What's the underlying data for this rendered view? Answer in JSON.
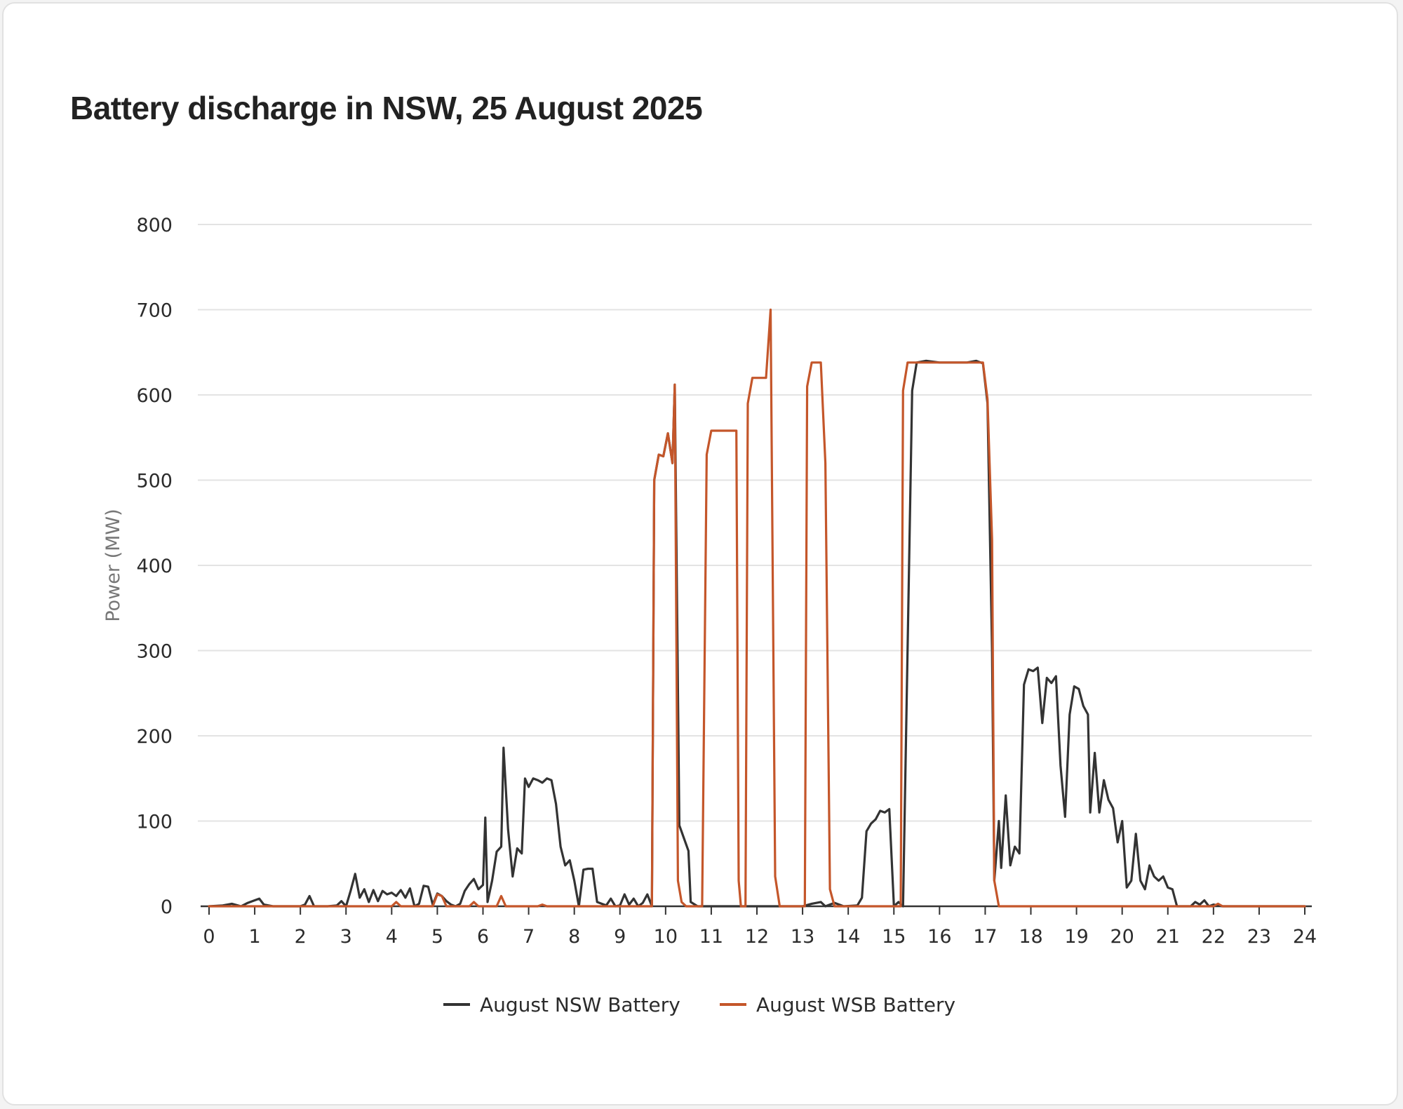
{
  "chart_data": {
    "type": "line",
    "title": "Battery discharge in NSW, 25 August 2025",
    "xlabel": "",
    "ylabel": "Power (MW)",
    "xlim": [
      0,
      24
    ],
    "ylim": [
      0,
      800
    ],
    "x_ticks": [
      "0",
      "1",
      "2",
      "3",
      "4",
      "5",
      "6",
      "7",
      "8",
      "9",
      "10",
      "11",
      "12",
      "13",
      "14",
      "15",
      "16",
      "17",
      "18",
      "19",
      "20",
      "21",
      "22",
      "23",
      "24"
    ],
    "y_ticks": [
      "0",
      "100",
      "200",
      "300",
      "400",
      "500",
      "600",
      "700",
      "800"
    ],
    "grid": true,
    "legend_position": "bottom-center",
    "series": [
      {
        "name": "August NSW Battery",
        "color": "#333333",
        "points": [
          [
            0,
            0
          ],
          [
            0.3,
            1
          ],
          [
            0.5,
            3
          ],
          [
            0.7,
            0
          ],
          [
            0.85,
            4
          ],
          [
            1,
            7
          ],
          [
            1.1,
            9
          ],
          [
            1.2,
            2
          ],
          [
            1.4,
            0
          ],
          [
            2,
            0
          ],
          [
            2.1,
            2
          ],
          [
            2.2,
            12
          ],
          [
            2.3,
            0
          ],
          [
            2.6,
            0
          ],
          [
            2.8,
            1
          ],
          [
            2.9,
            6
          ],
          [
            3,
            0
          ],
          [
            3.1,
            18
          ],
          [
            3.2,
            38
          ],
          [
            3.3,
            10
          ],
          [
            3.4,
            20
          ],
          [
            3.5,
            5
          ],
          [
            3.6,
            19
          ],
          [
            3.7,
            6
          ],
          [
            3.8,
            18
          ],
          [
            3.9,
            14
          ],
          [
            4,
            16
          ],
          [
            4.1,
            12
          ],
          [
            4.2,
            19
          ],
          [
            4.3,
            10
          ],
          [
            4.4,
            21
          ],
          [
            4.5,
            0
          ],
          [
            4.6,
            3
          ],
          [
            4.7,
            24
          ],
          [
            4.8,
            23
          ],
          [
            4.9,
            2
          ],
          [
            5,
            15
          ],
          [
            5.1,
            12
          ],
          [
            5.2,
            6
          ],
          [
            5.3,
            2
          ],
          [
            5.4,
            0
          ],
          [
            5.5,
            3
          ],
          [
            5.6,
            18
          ],
          [
            5.7,
            26
          ],
          [
            5.8,
            32
          ],
          [
            5.9,
            20
          ],
          [
            6,
            25
          ],
          [
            6.05,
            104
          ],
          [
            6.1,
            5
          ],
          [
            6.2,
            30
          ],
          [
            6.3,
            64
          ],
          [
            6.4,
            70
          ],
          [
            6.45,
            186
          ],
          [
            6.55,
            90
          ],
          [
            6.65,
            35
          ],
          [
            6.75,
            68
          ],
          [
            6.85,
            62
          ],
          [
            6.92,
            150
          ],
          [
            7,
            140
          ],
          [
            7.1,
            150
          ],
          [
            7.2,
            148
          ],
          [
            7.3,
            145
          ],
          [
            7.4,
            150
          ],
          [
            7.5,
            148
          ],
          [
            7.6,
            120
          ],
          [
            7.7,
            70
          ],
          [
            7.8,
            48
          ],
          [
            7.9,
            54
          ],
          [
            8,
            30
          ],
          [
            8.1,
            0
          ],
          [
            8.2,
            43
          ],
          [
            8.3,
            44
          ],
          [
            8.4,
            44
          ],
          [
            8.5,
            5
          ],
          [
            8.6,
            3
          ],
          [
            8.7,
            1
          ],
          [
            8.8,
            9
          ],
          [
            8.9,
            0
          ],
          [
            9,
            1
          ],
          [
            9.1,
            14
          ],
          [
            9.2,
            2
          ],
          [
            9.3,
            9
          ],
          [
            9.4,
            0
          ],
          [
            9.5,
            4
          ],
          [
            9.6,
            14
          ],
          [
            9.7,
            0
          ],
          [
            9.75,
            500
          ],
          [
            9.85,
            530
          ],
          [
            9.95,
            528
          ],
          [
            10.05,
            555
          ],
          [
            10.15,
            520
          ],
          [
            10.2,
            612
          ],
          [
            10.3,
            95
          ],
          [
            10.4,
            80
          ],
          [
            10.5,
            65
          ],
          [
            10.55,
            5
          ],
          [
            10.7,
            0
          ],
          [
            13,
            0
          ],
          [
            13.2,
            3
          ],
          [
            13.4,
            5
          ],
          [
            13.5,
            0
          ],
          [
            13.7,
            4
          ],
          [
            13.9,
            0
          ],
          [
            14.2,
            1
          ],
          [
            14.3,
            10
          ],
          [
            14.4,
            88
          ],
          [
            14.5,
            97
          ],
          [
            14.6,
            102
          ],
          [
            14.7,
            112
          ],
          [
            14.8,
            110
          ],
          [
            14.9,
            114
          ],
          [
            15,
            0
          ],
          [
            15.1,
            5
          ],
          [
            15.2,
            0
          ],
          [
            15.4,
            605
          ],
          [
            15.5,
            638
          ],
          [
            15.7,
            640
          ],
          [
            16,
            638
          ],
          [
            16.3,
            638
          ],
          [
            16.6,
            638
          ],
          [
            16.8,
            640
          ],
          [
            16.95,
            637
          ],
          [
            17.05,
            590
          ],
          [
            17.15,
            300
          ],
          [
            17.2,
            30
          ],
          [
            17.3,
            100
          ],
          [
            17.35,
            45
          ],
          [
            17.45,
            130
          ],
          [
            17.55,
            48
          ],
          [
            17.65,
            70
          ],
          [
            17.75,
            62
          ],
          [
            17.85,
            260
          ],
          [
            17.95,
            278
          ],
          [
            18.05,
            276
          ],
          [
            18.15,
            280
          ],
          [
            18.25,
            215
          ],
          [
            18.35,
            268
          ],
          [
            18.45,
            262
          ],
          [
            18.55,
            270
          ],
          [
            18.65,
            165
          ],
          [
            18.75,
            105
          ],
          [
            18.85,
            225
          ],
          [
            18.95,
            258
          ],
          [
            19.05,
            255
          ],
          [
            19.15,
            235
          ],
          [
            19.25,
            225
          ],
          [
            19.3,
            110
          ],
          [
            19.4,
            180
          ],
          [
            19.5,
            110
          ],
          [
            19.6,
            148
          ],
          [
            19.7,
            125
          ],
          [
            19.8,
            115
          ],
          [
            19.9,
            75
          ],
          [
            20,
            100
          ],
          [
            20.1,
            22
          ],
          [
            20.2,
            30
          ],
          [
            20.3,
            85
          ],
          [
            20.4,
            30
          ],
          [
            20.5,
            20
          ],
          [
            20.6,
            48
          ],
          [
            20.7,
            35
          ],
          [
            20.8,
            30
          ],
          [
            20.9,
            35
          ],
          [
            21,
            22
          ],
          [
            21.1,
            20
          ],
          [
            21.2,
            0
          ],
          [
            21.5,
            0
          ],
          [
            21.6,
            5
          ],
          [
            21.7,
            2
          ],
          [
            21.8,
            7
          ],
          [
            21.9,
            0
          ],
          [
            22,
            2
          ],
          [
            22.2,
            0
          ],
          [
            24,
            0
          ]
        ]
      },
      {
        "name": "August WSB Battery",
        "color": "#c4562a",
        "points": [
          [
            0,
            0
          ],
          [
            4,
            0
          ],
          [
            4.1,
            5
          ],
          [
            4.2,
            0
          ],
          [
            4.9,
            0
          ],
          [
            5,
            14
          ],
          [
            5.1,
            12
          ],
          [
            5.2,
            0
          ],
          [
            5.7,
            0
          ],
          [
            5.8,
            5
          ],
          [
            5.9,
            0
          ],
          [
            6.3,
            0
          ],
          [
            6.4,
            12
          ],
          [
            6.5,
            0
          ],
          [
            7.2,
            0
          ],
          [
            7.3,
            2
          ],
          [
            7.4,
            0
          ],
          [
            9.6,
            0
          ],
          [
            9.7,
            0
          ],
          [
            9.75,
            500
          ],
          [
            9.85,
            530
          ],
          [
            9.95,
            528
          ],
          [
            10.05,
            555
          ],
          [
            10.15,
            520
          ],
          [
            10.2,
            612
          ],
          [
            10.27,
            30
          ],
          [
            10.35,
            5
          ],
          [
            10.45,
            0
          ],
          [
            10.8,
            0
          ],
          [
            10.9,
            530
          ],
          [
            11,
            558
          ],
          [
            11.2,
            558
          ],
          [
            11.4,
            558
          ],
          [
            11.55,
            558
          ],
          [
            11.6,
            30
          ],
          [
            11.65,
            0
          ],
          [
            11.75,
            0
          ],
          [
            11.8,
            590
          ],
          [
            11.9,
            620
          ],
          [
            12.05,
            620
          ],
          [
            12.2,
            620
          ],
          [
            12.3,
            700
          ],
          [
            12.4,
            35
          ],
          [
            12.5,
            0
          ],
          [
            13.05,
            0
          ],
          [
            13.1,
            610
          ],
          [
            13.2,
            638
          ],
          [
            13.4,
            638
          ],
          [
            13.5,
            520
          ],
          [
            13.6,
            20
          ],
          [
            13.7,
            0
          ],
          [
            15.15,
            0
          ],
          [
            15.2,
            605
          ],
          [
            15.3,
            638
          ],
          [
            15.7,
            638
          ],
          [
            16.2,
            638
          ],
          [
            16.7,
            638
          ],
          [
            16.95,
            638
          ],
          [
            17.05,
            595
          ],
          [
            17.15,
            430
          ],
          [
            17.2,
            30
          ],
          [
            17.3,
            0
          ],
          [
            22,
            0
          ],
          [
            22.1,
            3
          ],
          [
            22.2,
            0
          ],
          [
            24,
            0
          ]
        ]
      }
    ]
  }
}
